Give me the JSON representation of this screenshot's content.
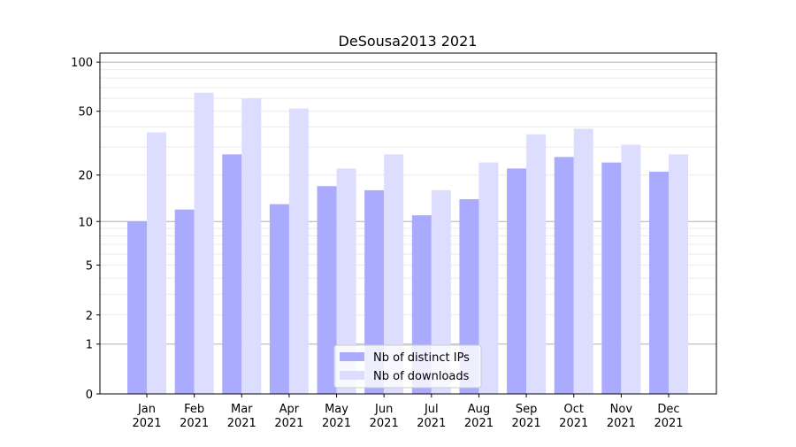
{
  "chart_data": {
    "type": "bar",
    "title": "DeSousa2013 2021",
    "xlabel": "",
    "ylabel": "",
    "yscale": "log10(1+y)",
    "ylim": [
      0,
      110
    ],
    "yticks": [
      0,
      1,
      2,
      5,
      10,
      20,
      50,
      100
    ],
    "grid": true,
    "legend_position": "bottom-center",
    "categories": [
      "Jan\n2021",
      "Feb\n2021",
      "Mar\n2021",
      "Apr\n2021",
      "May\n2021",
      "Jun\n2021",
      "Jul\n2021",
      "Aug\n2021",
      "Sep\n2021",
      "Oct\n2021",
      "Nov\n2021",
      "Dec\n2021"
    ],
    "category_lines": [
      [
        "Jan",
        "2021"
      ],
      [
        "Feb",
        "2021"
      ],
      [
        "Mar",
        "2021"
      ],
      [
        "Apr",
        "2021"
      ],
      [
        "May",
        "2021"
      ],
      [
        "Jun",
        "2021"
      ],
      [
        "Jul",
        "2021"
      ],
      [
        "Aug",
        "2021"
      ],
      [
        "Sep",
        "2021"
      ],
      [
        "Oct",
        "2021"
      ],
      [
        "Nov",
        "2021"
      ],
      [
        "Dec",
        "2021"
      ]
    ],
    "series": [
      {
        "name": "Nb of distinct IPs",
        "color": "#aaaaff",
        "values": [
          10,
          12,
          27,
          13,
          17,
          16,
          11,
          14,
          22,
          26,
          24,
          21
        ]
      },
      {
        "name": "Nb of downloads",
        "color": "#ddddff",
        "values": [
          37,
          65,
          60,
          52,
          22,
          27,
          16,
          24,
          36,
          39,
          31,
          27
        ]
      }
    ]
  }
}
